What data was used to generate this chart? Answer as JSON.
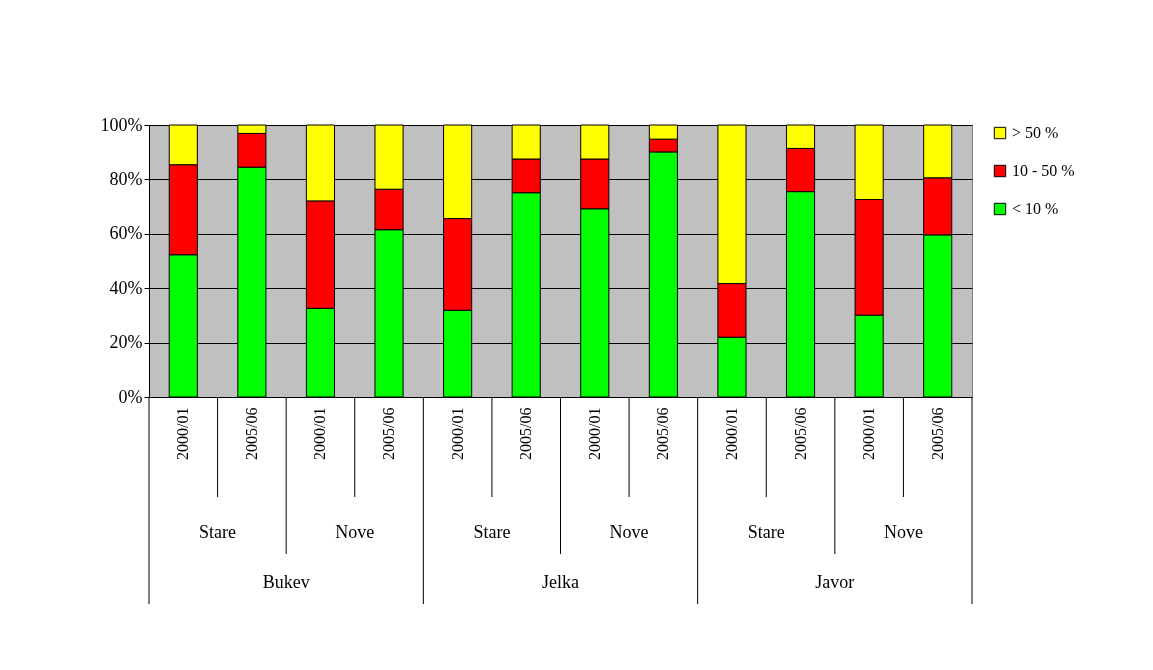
{
  "chart_data": {
    "type": "bar",
    "stacked": true,
    "categories": [
      "2000/01",
      "2005/06",
      "2000/01",
      "2005/06",
      "2000/01",
      "2005/06",
      "2000/01",
      "2005/06",
      "2000/01",
      "2005/06",
      "2000/01",
      "2005/06"
    ],
    "series": [
      {
        "name": "< 10 %",
        "color": "#00ff00",
        "values": [
          52.3,
          84.5,
          32.6,
          61.5,
          31.9,
          75.1,
          69.2,
          90.1,
          22.0,
          75.5,
          30.1,
          59.6
        ]
      },
      {
        "name": "10 - 50  %",
        "color": "#ff0000",
        "values": [
          33.1,
          12.4,
          39.5,
          14.9,
          33.7,
          12.4,
          18.3,
          4.7,
          19.7,
          15.9,
          42.5,
          21.0
        ]
      },
      {
        "name": "> 50 %",
        "color": "#ffff00",
        "values": [
          14.6,
          3.1,
          27.9,
          23.6,
          34.4,
          12.5,
          12.5,
          5.2,
          58.3,
          8.6,
          27.4,
          19.4
        ]
      }
    ],
    "ylim": [
      0,
      100
    ],
    "yticks": [
      {
        "value": 0,
        "label": "0%"
      },
      {
        "value": 20,
        "label": "20%"
      },
      {
        "value": 40,
        "label": "40%"
      },
      {
        "value": 60,
        "label": "60%"
      },
      {
        "value": 80,
        "label": "80%"
      },
      {
        "value": 100,
        "label": "100%"
      }
    ],
    "grid": "y",
    "legend": "right",
    "annotations": [
      "Stare",
      "Nove",
      "Stare",
      "Nove",
      "Stare",
      "Nove",
      "Bukev",
      "Jelka",
      "Javor"
    ]
  }
}
